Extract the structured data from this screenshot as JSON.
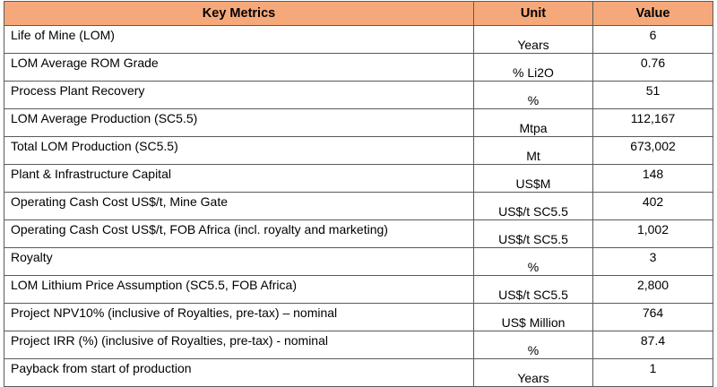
{
  "table": {
    "header_color": "#F5A97A",
    "headers": [
      "Key Metrics",
      "Unit",
      "Value"
    ],
    "rows": [
      {
        "metric": "Life of Mine (LOM)",
        "unit": "Years",
        "value": "6"
      },
      {
        "metric": "LOM Average ROM Grade",
        "unit": "% Li2O",
        "value": "0.76"
      },
      {
        "metric": "Process Plant Recovery",
        "unit": "%",
        "value": "51"
      },
      {
        "metric": "LOM Average Production (SC5.5)",
        "unit": "Mtpa",
        "value": "112,167"
      },
      {
        "metric": "Total LOM Production (SC5.5)",
        "unit": "Mt",
        "value": "673,002"
      },
      {
        "metric": "Plant & Infrastructure Capital",
        "unit": "US$M",
        "value": "148"
      },
      {
        "metric": "Operating Cash Cost US$/t, Mine Gate",
        "unit": "US$/t SC5.5",
        "value": "402"
      },
      {
        "metric": "Operating Cash Cost US$/t, FOB Africa (incl. royalty and marketing)",
        "unit": "US$/t SC5.5",
        "value": "1,002"
      },
      {
        "metric": "Royalty",
        "unit": "%",
        "value": "3"
      },
      {
        "metric": "LOM Lithium Price Assumption (SC5.5, FOB Africa)",
        "unit": "US$/t SC5.5",
        "value": "2,800"
      },
      {
        "metric": "Project NPV10% (inclusive of Royalties, pre-tax) – nominal",
        "unit": "US$ Million",
        "value": "764"
      },
      {
        "metric": "Project IRR (%) (inclusive of Royalties, pre-tax) - nominal",
        "unit": "%",
        "value": "87.4"
      },
      {
        "metric": "Payback from start of production",
        "unit": "Years",
        "value": "1"
      }
    ]
  }
}
